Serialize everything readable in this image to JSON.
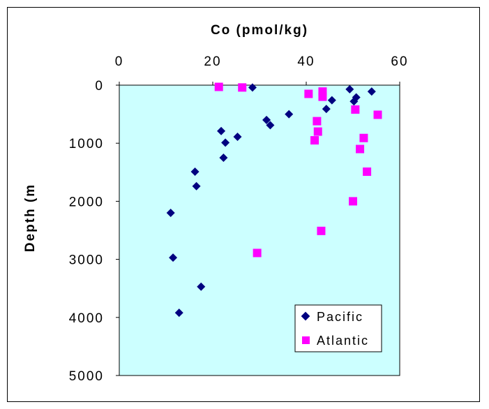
{
  "chart_data": {
    "type": "scatter",
    "title": "",
    "xlabel": "Co (pmol/kg)",
    "ylabel": "Depth (m",
    "xlim": [
      0,
      60
    ],
    "ylim": [
      0,
      5000
    ],
    "y_reversed": true,
    "x_axis_position": "top",
    "x_ticks": [
      "0",
      "20",
      "40",
      "60"
    ],
    "y_ticks": [
      "0",
      "1000",
      "2000",
      "3000",
      "4000",
      "5000"
    ],
    "plot_background": "#ccffff",
    "grid": false,
    "legend_position": "bottom-right",
    "series": [
      {
        "name": "Pacific",
        "marker": "diamond",
        "color": "#000080",
        "points": [
          [
            28.5,
            40
          ],
          [
            49.3,
            70
          ],
          [
            54.0,
            110
          ],
          [
            50.7,
            210
          ],
          [
            50.2,
            280
          ],
          [
            45.5,
            260
          ],
          [
            44.3,
            410
          ],
          [
            36.3,
            500
          ],
          [
            31.5,
            600
          ],
          [
            32.3,
            690
          ],
          [
            21.8,
            790
          ],
          [
            25.3,
            890
          ],
          [
            22.7,
            990
          ],
          [
            22.3,
            1250
          ],
          [
            16.2,
            1490
          ],
          [
            16.5,
            1740
          ],
          [
            11.0,
            2200
          ],
          [
            11.5,
            2970
          ],
          [
            17.5,
            3470
          ],
          [
            12.8,
            3920
          ]
        ]
      },
      {
        "name": "Atlantic",
        "marker": "square",
        "color": "#ff00ff",
        "points": [
          [
            21.3,
            30
          ],
          [
            26.3,
            40
          ],
          [
            40.5,
            150
          ],
          [
            43.5,
            110
          ],
          [
            43.5,
            200
          ],
          [
            50.5,
            420
          ],
          [
            55.3,
            510
          ],
          [
            42.3,
            620
          ],
          [
            42.5,
            800
          ],
          [
            41.8,
            950
          ],
          [
            52.3,
            910
          ],
          [
            51.5,
            1100
          ],
          [
            53.0,
            1490
          ],
          [
            50.0,
            2000
          ],
          [
            43.2,
            2510
          ],
          [
            29.5,
            2890
          ]
        ]
      }
    ]
  }
}
